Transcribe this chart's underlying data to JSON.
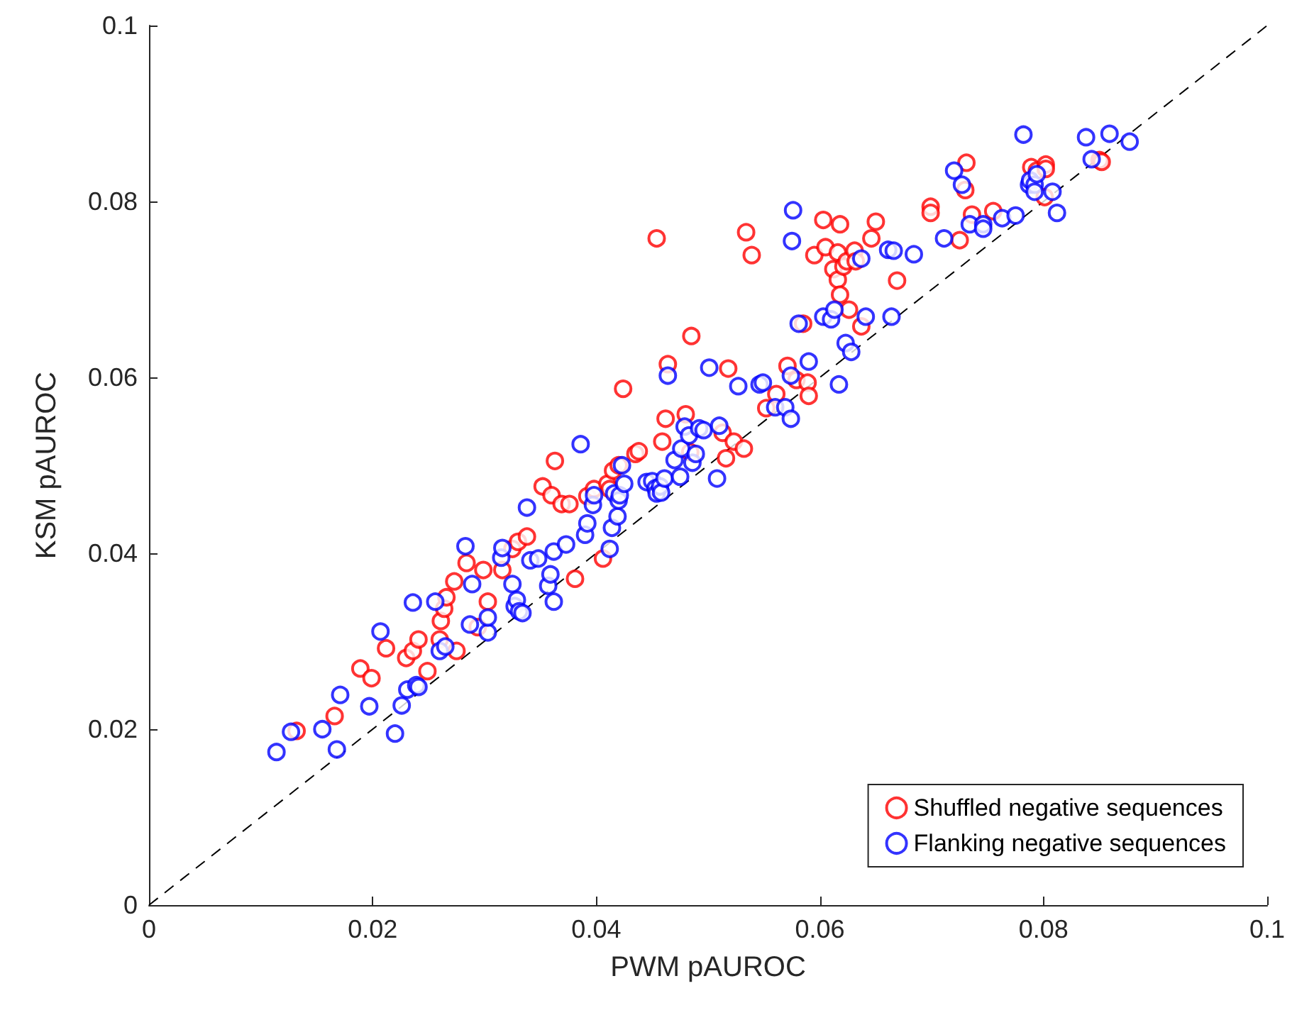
{
  "chart_data": {
    "type": "scatter",
    "xlabel": "PWM pAUROC",
    "ylabel": "KSM pAUROC",
    "xlim": [
      0,
      0.1
    ],
    "ylim": [
      0,
      0.1
    ],
    "xticks": [
      0,
      0.02,
      0.04,
      0.06,
      0.08,
      0.1
    ],
    "yticks": [
      0,
      0.02,
      0.04,
      0.06,
      0.08,
      0.1
    ],
    "grid": false,
    "legend": "bottom right",
    "marker": "circle",
    "series": [
      {
        "type": "line",
        "color": "#000000",
        "line_style": "dashed",
        "marker": "none",
        "x": [
          0,
          0.1
        ],
        "values": [
          0,
          0.1
        ]
      },
      {
        "name": "Shuffled negative sequences",
        "color": "#ff0000",
        "x": [
          0.0132,
          0.0166,
          0.0189,
          0.0199,
          0.0212,
          0.023,
          0.0236,
          0.0241,
          0.0249,
          0.026,
          0.0261,
          0.0264,
          0.0266,
          0.0273,
          0.0275,
          0.0284,
          0.0294,
          0.0299,
          0.0303,
          0.0316,
          0.0325,
          0.033,
          0.0338,
          0.0352,
          0.036,
          0.0363,
          0.0369,
          0.0376,
          0.0381,
          0.0392,
          0.0398,
          0.0406,
          0.041,
          0.0412,
          0.0415,
          0.042,
          0.0424,
          0.0435,
          0.0438,
          0.0454,
          0.0462,
          0.0464,
          0.0459,
          0.0484,
          0.0485,
          0.048,
          0.0513,
          0.0516,
          0.0518,
          0.0523,
          0.0532,
          0.0534,
          0.0539,
          0.0552,
          0.0561,
          0.0571,
          0.0579,
          0.0585,
          0.0589,
          0.059,
          0.0595,
          0.0603,
          0.0605,
          0.0612,
          0.0616,
          0.0618,
          0.0616,
          0.0618,
          0.0621,
          0.0624,
          0.0626,
          0.0631,
          0.0632,
          0.0637,
          0.0646,
          0.065,
          0.0669,
          0.0699,
          0.0699,
          0.0725,
          0.0731,
          0.073,
          0.0736,
          0.0755,
          0.0789,
          0.0794,
          0.0802,
          0.0801,
          0.0802,
          0.085,
          0.0852
        ],
        "values": [
          0.0198,
          0.0215,
          0.0269,
          0.0258,
          0.0292,
          0.0281,
          0.0289,
          0.0302,
          0.0266,
          0.0302,
          0.0323,
          0.0337,
          0.035,
          0.0368,
          0.0289,
          0.0389,
          0.0316,
          0.0381,
          0.0345,
          0.0381,
          0.0405,
          0.0413,
          0.0419,
          0.0476,
          0.0466,
          0.0505,
          0.0456,
          0.0456,
          0.0371,
          0.0465,
          0.0473,
          0.0394,
          0.0479,
          0.0473,
          0.0494,
          0.05,
          0.0587,
          0.0513,
          0.0516,
          0.0758,
          0.0553,
          0.0615,
          0.0527,
          0.0515,
          0.0647,
          0.0558,
          0.0537,
          0.0508,
          0.061,
          0.0527,
          0.0519,
          0.0765,
          0.0739,
          0.0565,
          0.0581,
          0.0613,
          0.0597,
          0.0661,
          0.0594,
          0.0579,
          0.0739,
          0.0779,
          0.0748,
          0.0723,
          0.0742,
          0.0774,
          0.0711,
          0.0694,
          0.0726,
          0.0732,
          0.0677,
          0.0744,
          0.0732,
          0.0658,
          0.0758,
          0.0777,
          0.071,
          0.0794,
          0.0787,
          0.0756,
          0.0844,
          0.0813,
          0.0785,
          0.0789,
          0.0839,
          0.0835,
          0.0842,
          0.0805,
          0.0837,
          0.0847,
          0.0845
        ]
      },
      {
        "name": "Flanking negative sequences",
        "color": "#0000ff",
        "x": [
          0.0114,
          0.0127,
          0.0155,
          0.0168,
          0.0171,
          0.0197,
          0.0207,
          0.022,
          0.0226,
          0.0231,
          0.0239,
          0.0241,
          0.0236,
          0.0256,
          0.026,
          0.0265,
          0.0283,
          0.0287,
          0.0289,
          0.0303,
          0.0303,
          0.0315,
          0.0316,
          0.0325,
          0.0327,
          0.0329,
          0.0331,
          0.0334,
          0.0338,
          0.0341,
          0.0348,
          0.0357,
          0.0359,
          0.0362,
          0.0362,
          0.0373,
          0.0386,
          0.039,
          0.0392,
          0.0397,
          0.0398,
          0.0412,
          0.0414,
          0.0416,
          0.0419,
          0.042,
          0.0421,
          0.0425,
          0.0423,
          0.0445,
          0.045,
          0.0453,
          0.0454,
          0.0457,
          0.0458,
          0.0461,
          0.0464,
          0.047,
          0.0475,
          0.0476,
          0.0479,
          0.0483,
          0.0486,
          0.0489,
          0.0492,
          0.0496,
          0.0501,
          0.0508,
          0.051,
          0.0527,
          0.0546,
          0.0549,
          0.056,
          0.0569,
          0.0574,
          0.0574,
          0.0576,
          0.0575,
          0.0581,
          0.059,
          0.0603,
          0.061,
          0.0613,
          0.0617,
          0.0623,
          0.0628,
          0.0637,
          0.0641,
          0.0661,
          0.0664,
          0.0666,
          0.0684,
          0.0711,
          0.072,
          0.0727,
          0.0734,
          0.0746,
          0.0746,
          0.0763,
          0.0775,
          0.0782,
          0.0787,
          0.0788,
          0.0792,
          0.0792,
          0.0794,
          0.0808,
          0.0812,
          0.0838,
          0.0843,
          0.0859,
          0.0877
        ],
        "values": [
          0.0174,
          0.0197,
          0.02,
          0.0177,
          0.0239,
          0.0226,
          0.0311,
          0.0195,
          0.0227,
          0.0245,
          0.025,
          0.0248,
          0.0344,
          0.0345,
          0.0289,
          0.0294,
          0.0408,
          0.0319,
          0.0365,
          0.031,
          0.0327,
          0.0395,
          0.0406,
          0.0365,
          0.034,
          0.0347,
          0.0334,
          0.0332,
          0.0452,
          0.0392,
          0.0394,
          0.0363,
          0.0376,
          0.0402,
          0.0345,
          0.041,
          0.0524,
          0.0421,
          0.0434,
          0.0455,
          0.0466,
          0.0405,
          0.0429,
          0.0468,
          0.0442,
          0.046,
          0.0466,
          0.0479,
          0.05,
          0.0481,
          0.0482,
          0.0474,
          0.0468,
          0.0476,
          0.0469,
          0.0485,
          0.0602,
          0.0506,
          0.0487,
          0.0519,
          0.0544,
          0.0534,
          0.0503,
          0.0513,
          0.0542,
          0.054,
          0.0611,
          0.0485,
          0.0545,
          0.059,
          0.0592,
          0.0594,
          0.0566,
          0.0566,
          0.0553,
          0.0602,
          0.079,
          0.0755,
          0.0661,
          0.0618,
          0.0669,
          0.0666,
          0.0677,
          0.0592,
          0.0639,
          0.0629,
          0.0735,
          0.0669,
          0.0745,
          0.0669,
          0.0744,
          0.074,
          0.0758,
          0.0835,
          0.0819,
          0.0774,
          0.0774,
          0.0769,
          0.0781,
          0.0784,
          0.0876,
          0.0819,
          0.0824,
          0.0819,
          0.0811,
          0.0831,
          0.0811,
          0.0787,
          0.0873,
          0.0848,
          0.0877,
          0.0868
        ]
      }
    ]
  }
}
